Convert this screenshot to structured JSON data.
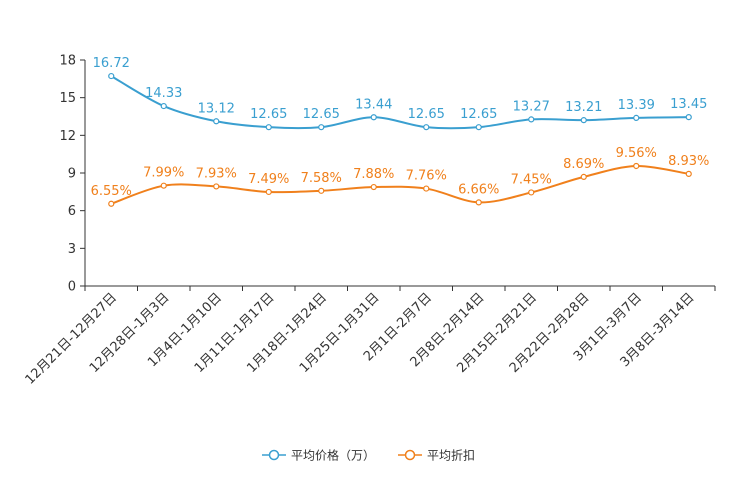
{
  "chart_data": {
    "type": "line",
    "title": "",
    "xlabel": "",
    "ylabel": "",
    "ylim": [
      0,
      18
    ],
    "yticks": [
      0,
      3,
      6,
      9,
      12,
      15,
      18
    ],
    "grid": false,
    "legend_position": "bottom-center",
    "categories": [
      "12月21日-12月27日",
      "12月28日-1月3日",
      "1月4日-1月10日",
      "1月11日-1月17日",
      "1月18日-1月24日",
      "1月25日-1月31日",
      "2月1日-2月7日",
      "2月8日-2月14日",
      "2月15日-2月21日",
      "2月22日-2月28日",
      "3月1日-3月7日",
      "3月8日-3月14日"
    ],
    "series": [
      {
        "name": "平均价格（万）",
        "color": "#3a9fd0",
        "values": [
          16.72,
          14.33,
          13.12,
          12.65,
          12.65,
          13.44,
          12.65,
          12.65,
          13.27,
          13.21,
          13.39,
          13.45
        ],
        "labels": [
          "16.72",
          "14.33",
          "13.12",
          "12.65",
          "12.65",
          "13.44",
          "12.65",
          "12.65",
          "13.27",
          "13.21",
          "13.39",
          "13.45"
        ]
      },
      {
        "name": "平均折扣",
        "color": "#f0801c",
        "values": [
          6.55,
          7.99,
          7.93,
          7.49,
          7.58,
          7.88,
          7.76,
          6.66,
          7.45,
          8.69,
          9.56,
          8.93
        ],
        "labels": [
          "6.55%",
          "7.99%",
          "7.93%",
          "7.49%",
          "7.58%",
          "7.88%",
          "7.76%",
          "6.66%",
          "7.45%",
          "8.69%",
          "9.56%",
          "8.93%"
        ]
      }
    ]
  }
}
